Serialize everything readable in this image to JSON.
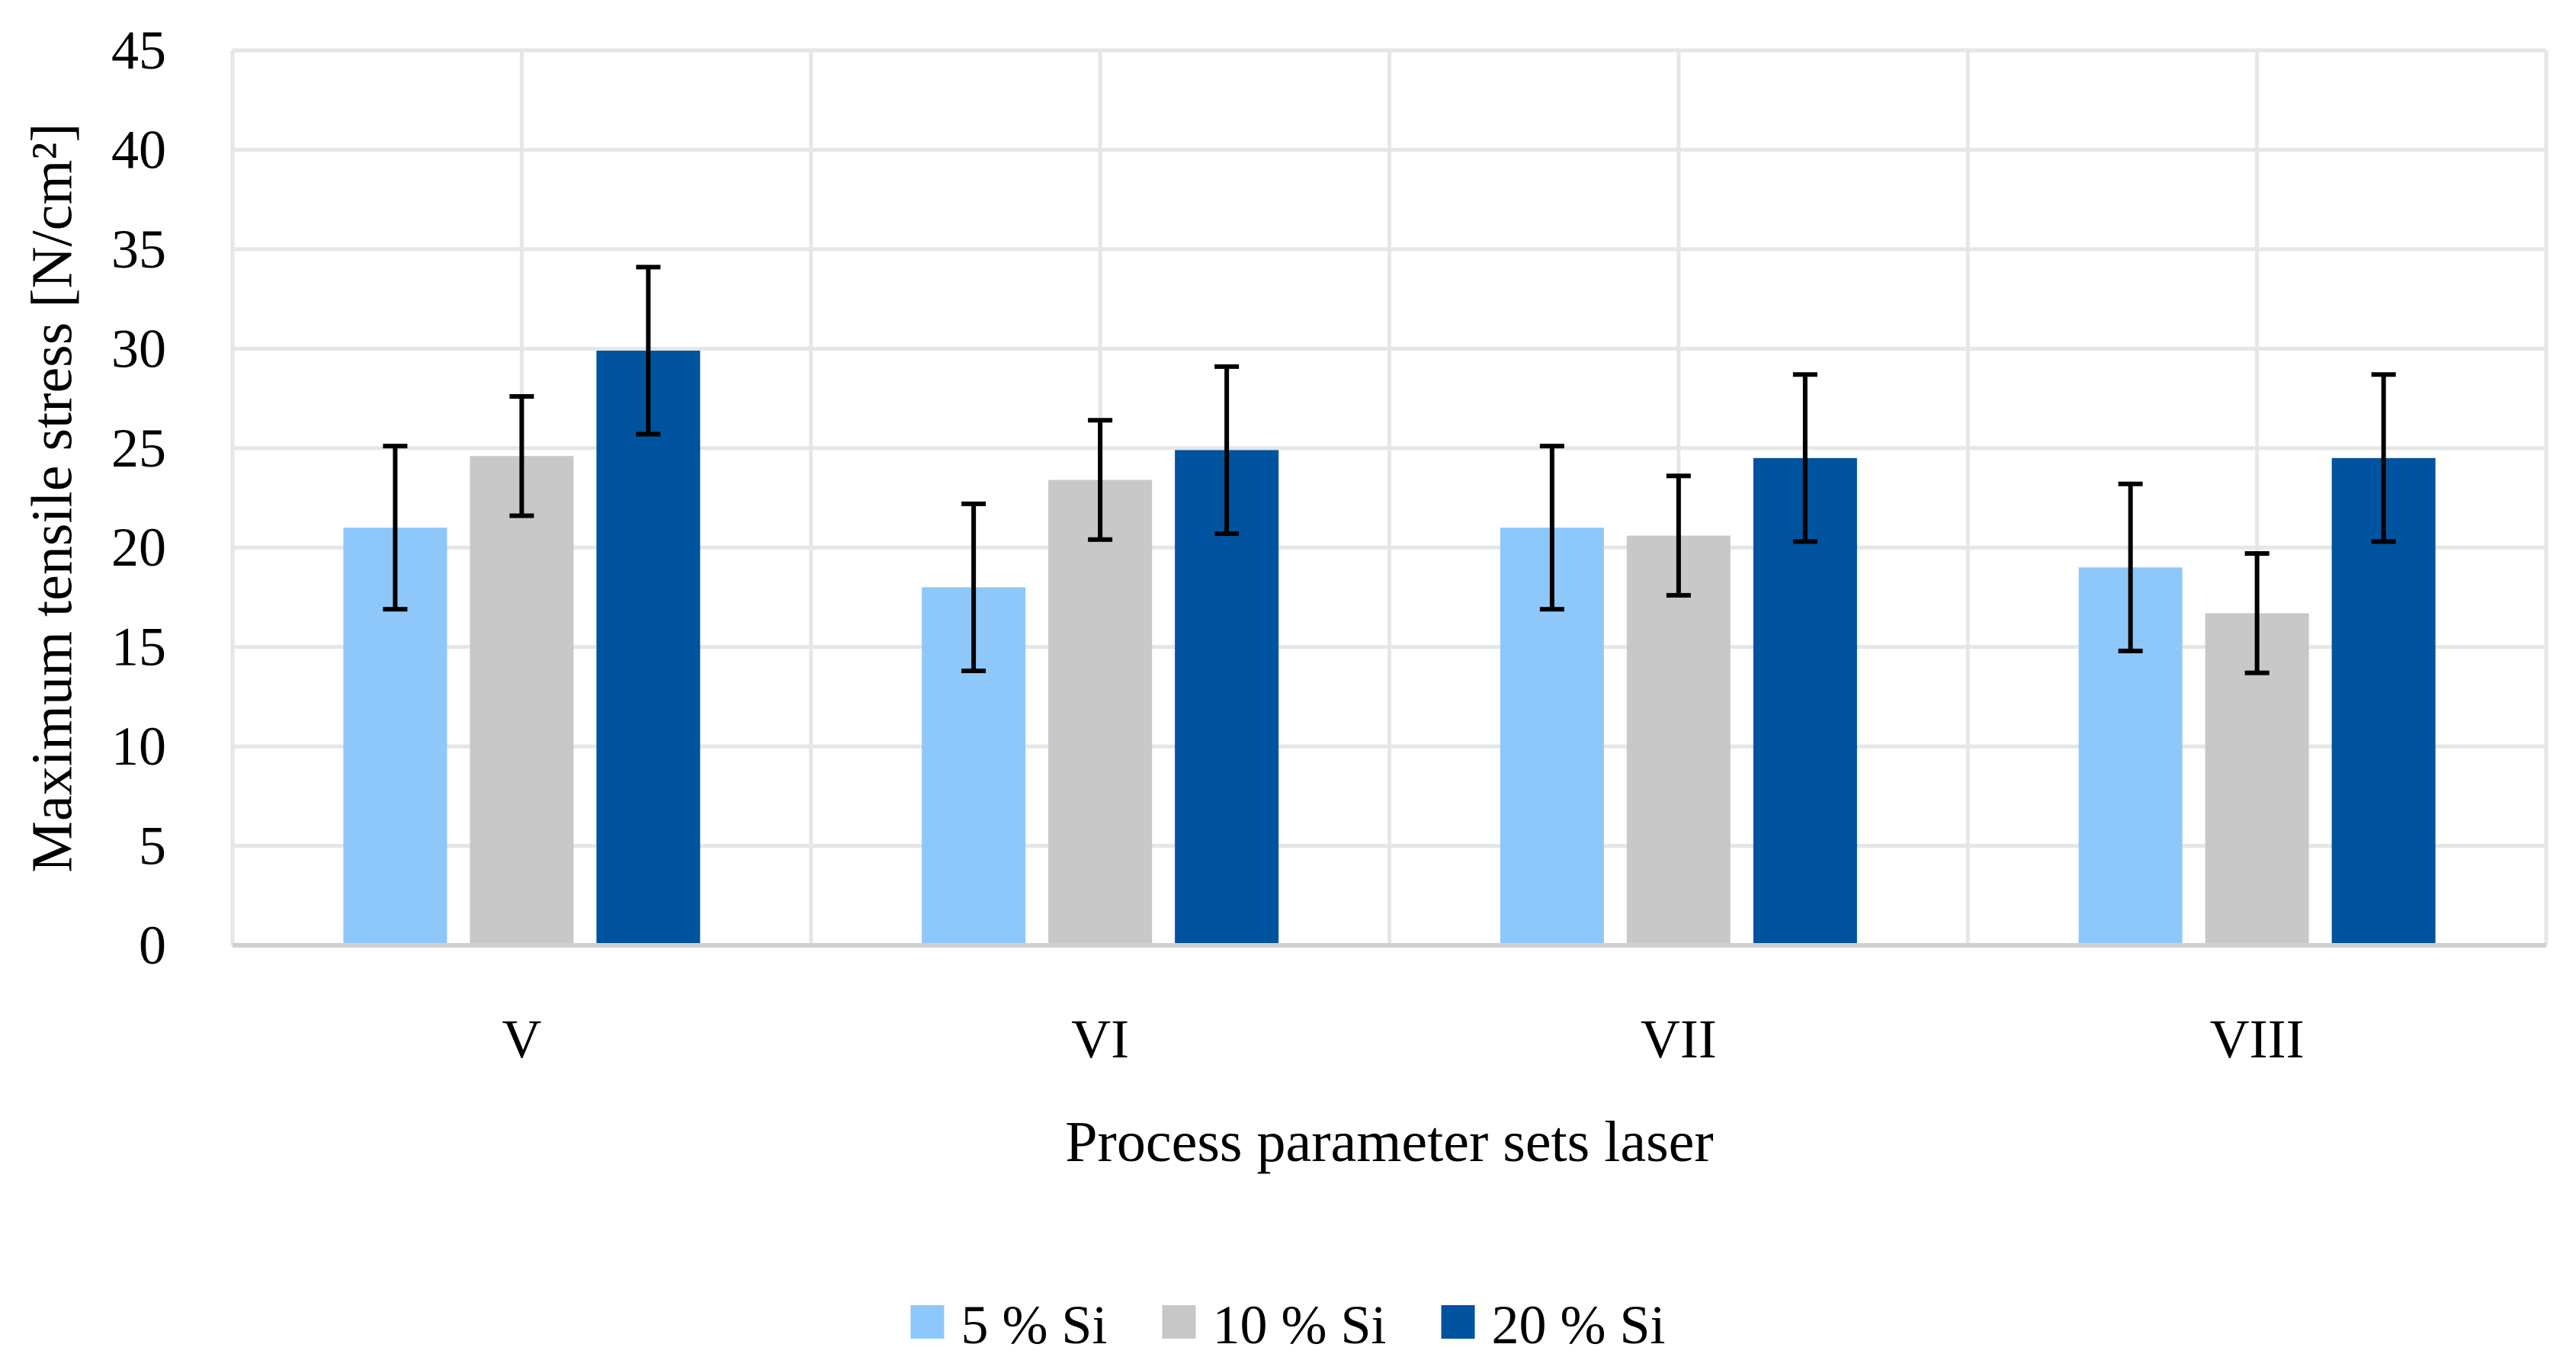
{
  "chart_data": {
    "type": "bar",
    "categories": [
      "V",
      "VI",
      "VII",
      "VIII"
    ],
    "series": [
      {
        "name": "5 % Si",
        "color": "#8ec8fb",
        "values": [
          21.0,
          18.0,
          21.0,
          19.0
        ],
        "errors": [
          4.1,
          4.2,
          4.1,
          4.2
        ]
      },
      {
        "name": "10 % Si",
        "color": "#c8c8c8",
        "values": [
          24.6,
          23.4,
          20.6,
          16.7
        ],
        "errors": [
          3.0,
          3.0,
          3.0,
          3.0
        ]
      },
      {
        "name": "20 % Si",
        "color": "#00539f",
        "values": [
          29.9,
          24.9,
          24.5,
          24.5
        ],
        "errors": [
          4.2,
          4.2,
          4.2,
          4.2
        ]
      }
    ],
    "ylabel": "Maximum tensile stress [N/cm²]",
    "xlabel": "Process parameter sets laser",
    "ylim": [
      0,
      45
    ],
    "yticks": [
      0,
      5,
      10,
      15,
      20,
      25,
      30,
      35,
      40,
      45
    ],
    "grid": true,
    "legend_position": "bottom-center"
  }
}
